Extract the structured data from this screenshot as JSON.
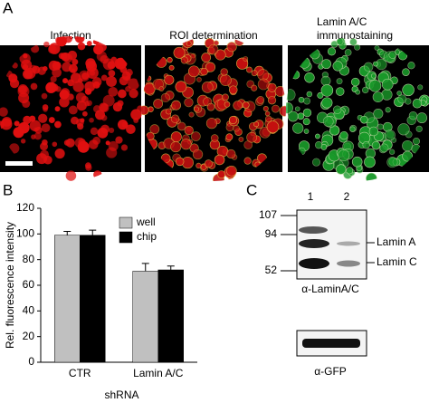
{
  "panel_labels": [
    "A",
    "B",
    "C"
  ],
  "panel_a": {
    "titles": [
      "Infection",
      "ROI determination",
      "Lamin A/C",
      "immunostaining"
    ]
  },
  "chart_data": {
    "type": "bar",
    "ylabel": "Rel. fluorescence intensity",
    "xlabel": "shRNA",
    "categories": [
      "CTR",
      "Lamin A/C"
    ],
    "series": [
      {
        "name": "well",
        "color": "#c0c0c0",
        "values": [
          99,
          71
        ],
        "errors": [
          3,
          6
        ]
      },
      {
        "name": "chip",
        "color": "#000000",
        "values": [
          99,
          72
        ],
        "errors": [
          4,
          3
        ]
      }
    ],
    "ylim": [
      0,
      120
    ],
    "yticks": [
      0,
      20,
      40,
      60,
      80,
      100,
      120
    ],
    "legend": "upper right"
  },
  "panel_c": {
    "lanes": [
      "1",
      "2"
    ],
    "markers": [
      "107",
      "94",
      "52"
    ],
    "bands": [
      "Lamin A",
      "Lamin C"
    ],
    "antibodies": [
      "α-LaminA/C",
      "α-GFP"
    ]
  }
}
